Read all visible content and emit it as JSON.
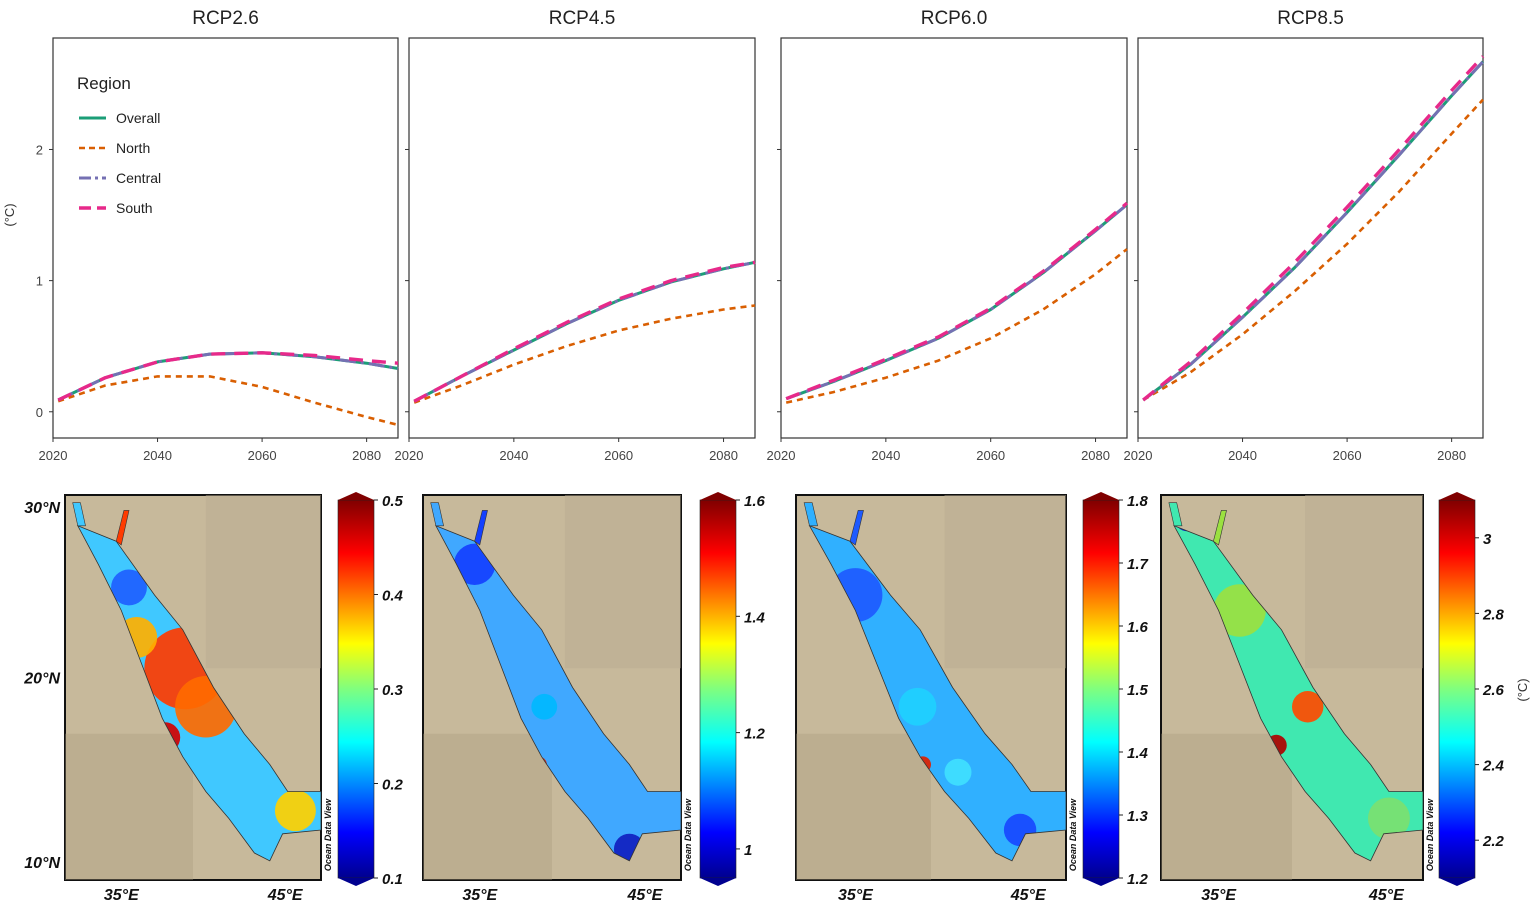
{
  "chart_data": [
    {
      "type": "line",
      "title": "RCP2.6",
      "xlabel": "",
      "ylabel": "(°C)",
      "xlim": [
        2020,
        2086
      ],
      "ylim": [
        -0.2,
        2.85
      ],
      "x": [
        2021,
        2030,
        2040,
        2050,
        2060,
        2070,
        2080,
        2086
      ],
      "series": [
        {
          "name": "Overall",
          "values": [
            0.09,
            0.26,
            0.38,
            0.44,
            0.45,
            0.42,
            0.37,
            0.33
          ]
        },
        {
          "name": "North",
          "values": [
            0.08,
            0.2,
            0.27,
            0.27,
            0.19,
            0.07,
            -0.04,
            -0.1
          ]
        },
        {
          "name": "Central",
          "values": [
            0.09,
            0.26,
            0.38,
            0.44,
            0.45,
            0.42,
            0.37,
            0.33
          ]
        },
        {
          "name": "South",
          "values": [
            0.09,
            0.26,
            0.38,
            0.44,
            0.45,
            0.43,
            0.39,
            0.37
          ]
        }
      ],
      "yticks": [
        "0",
        "1",
        "2"
      ],
      "xticks": [
        "2020",
        "2040",
        "2060",
        "2080"
      ]
    },
    {
      "type": "line",
      "title": "RCP4.5",
      "xlabel": "",
      "ylabel": "",
      "xlim": [
        2020,
        2086
      ],
      "ylim": [
        -0.2,
        2.85
      ],
      "x": [
        2021,
        2030,
        2040,
        2050,
        2060,
        2070,
        2080,
        2086
      ],
      "series": [
        {
          "name": "Overall",
          "values": [
            0.08,
            0.27,
            0.47,
            0.67,
            0.85,
            0.99,
            1.09,
            1.14
          ]
        },
        {
          "name": "North",
          "values": [
            0.07,
            0.2,
            0.36,
            0.5,
            0.62,
            0.71,
            0.78,
            0.81
          ]
        },
        {
          "name": "Central",
          "values": [
            0.08,
            0.27,
            0.47,
            0.67,
            0.85,
            0.99,
            1.09,
            1.14
          ]
        },
        {
          "name": "South",
          "values": [
            0.08,
            0.27,
            0.48,
            0.68,
            0.86,
            1.0,
            1.1,
            1.14
          ]
        }
      ],
      "yticks": [
        "0",
        "1",
        "2"
      ],
      "xticks": [
        "2020",
        "2040",
        "2060",
        "2080"
      ]
    },
    {
      "type": "line",
      "title": "RCP6.0",
      "xlabel": "",
      "ylabel": "",
      "xlim": [
        2020,
        2086
      ],
      "ylim": [
        -0.2,
        2.85
      ],
      "x": [
        2021,
        2030,
        2040,
        2050,
        2060,
        2070,
        2080,
        2086
      ],
      "series": [
        {
          "name": "Overall",
          "values": [
            0.1,
            0.23,
            0.39,
            0.56,
            0.78,
            1.06,
            1.38,
            1.58
          ]
        },
        {
          "name": "North",
          "values": [
            0.07,
            0.15,
            0.26,
            0.39,
            0.56,
            0.78,
            1.05,
            1.24
          ]
        },
        {
          "name": "Central",
          "values": [
            0.1,
            0.23,
            0.39,
            0.56,
            0.78,
            1.06,
            1.38,
            1.58
          ]
        },
        {
          "name": "South",
          "values": [
            0.1,
            0.24,
            0.4,
            0.57,
            0.79,
            1.07,
            1.39,
            1.59
          ]
        }
      ],
      "yticks": [
        "0",
        "1",
        "2"
      ],
      "xticks": [
        "2020",
        "2040",
        "2060",
        "2080"
      ]
    },
    {
      "type": "line",
      "title": "RCP8.5",
      "xlabel": "",
      "ylabel": "",
      "xlim": [
        2020,
        2086
      ],
      "ylim": [
        -0.2,
        2.85
      ],
      "x": [
        2021,
        2030,
        2040,
        2050,
        2060,
        2070,
        2080,
        2086
      ],
      "series": [
        {
          "name": "Overall",
          "values": [
            0.09,
            0.36,
            0.72,
            1.1,
            1.52,
            1.96,
            2.41,
            2.67
          ]
        },
        {
          "name": "North",
          "values": [
            0.09,
            0.3,
            0.59,
            0.92,
            1.28,
            1.68,
            2.12,
            2.38
          ]
        },
        {
          "name": "Central",
          "values": [
            0.09,
            0.36,
            0.72,
            1.1,
            1.52,
            1.96,
            2.41,
            2.67
          ]
        },
        {
          "name": "South",
          "values": [
            0.09,
            0.38,
            0.75,
            1.14,
            1.56,
            2.0,
            2.45,
            2.71
          ]
        }
      ],
      "yticks": [
        "0",
        "1",
        "2"
      ],
      "xticks": [
        "2020",
        "2040",
        "2060",
        "2080"
      ]
    },
    {
      "type": "heatmap",
      "title": "RCP2.6 map",
      "colorbar_ticks": [
        "0.5",
        "0.4",
        "0.3",
        "0.2",
        "0.1"
      ],
      "range": [
        0.1,
        0.5
      ],
      "xticks": [
        "35°E",
        "45°E"
      ],
      "yticks": [
        "30°N",
        "20°N",
        "10°N"
      ],
      "source": "Ocean Data View"
    },
    {
      "type": "heatmap",
      "title": "RCP4.5 map",
      "colorbar_ticks": [
        "1.6",
        "1.4",
        "1.2",
        "1"
      ],
      "range": [
        0.95,
        1.6
      ],
      "xticks": [
        "35°E",
        "45°E"
      ],
      "source": "Ocean Data View"
    },
    {
      "type": "heatmap",
      "title": "RCP6.0 map",
      "colorbar_ticks": [
        "1.8",
        "1.7",
        "1.6",
        "1.5",
        "1.4",
        "1.3",
        "1.2"
      ],
      "range": [
        1.2,
        1.8
      ],
      "xticks": [
        "35°E",
        "45°E"
      ],
      "source": "Ocean Data View"
    },
    {
      "type": "heatmap",
      "title": "RCP8.5 map",
      "colorbar_ticks": [
        "3",
        "2.8",
        "2.6",
        "2.4",
        "2.2"
      ],
      "range": [
        2.1,
        3.1
      ],
      "xticks": [
        "35°E",
        "45°E"
      ],
      "source": "Ocean Data View",
      "unit": "(°C)"
    }
  ],
  "legend": {
    "title": "Region",
    "items": [
      "Overall",
      "North",
      "Central",
      "South"
    ]
  },
  "colors": {
    "Overall": "#1b9e77",
    "North": "#d95f02",
    "Central": "#7570b3",
    "South": "#e7298a",
    "land": "#c7b99b",
    "panel_border": "#333333"
  }
}
